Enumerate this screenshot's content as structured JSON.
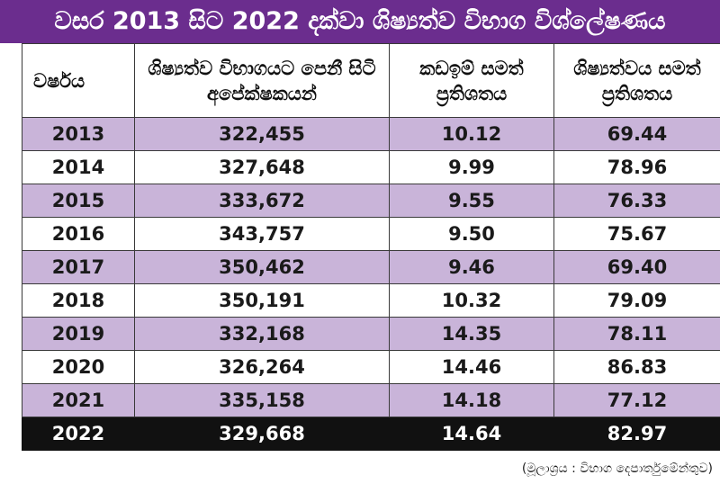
{
  "title": "වසර 2013 සිට 2022 දක්වා ශිෂ්‍යත්ව විභාග විශ්ලේෂණය",
  "columns": [
    "වර්ෂය",
    "ශිෂ්‍යත්ව විභාගයට පෙනී සිටි අපේක්ෂකයන්",
    "කඩඉම් සමත් ප්‍රතිශතය",
    "ශිෂ්‍යත්වය සමත් ප්‍රතිශතය"
  ],
  "rows": [
    [
      "2013",
      "322,455",
      "10.12",
      "69.44"
    ],
    [
      "2014",
      "327,648",
      "9.99",
      "78.96"
    ],
    [
      "2015",
      "333,672",
      "9.55",
      "76.33"
    ],
    [
      "2016",
      "343,757",
      "9.50",
      "75.67"
    ],
    [
      "2017",
      "350,462",
      "9.46",
      "69.40"
    ],
    [
      "2018",
      "350,191",
      "10.32",
      "79.09"
    ],
    [
      "2019",
      "332,168",
      "14.35",
      "78.11"
    ],
    [
      "2020",
      "326,264",
      "14.46",
      "86.83"
    ],
    [
      "2021",
      "335,158",
      "14.18",
      "77.12"
    ],
    [
      "2022",
      "329,668",
      "14.64",
      "82.97"
    ]
  ],
  "source": "(මූලාශ්‍රය : විභාග දෙපාර්තුමේන්තුව)",
  "colors": {
    "title_bg": "#6b2d8e",
    "band": "#c9b4d9",
    "highlight_row": "#111111"
  }
}
